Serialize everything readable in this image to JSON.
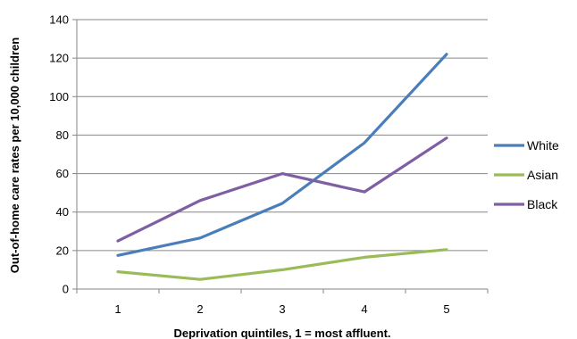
{
  "chart_data": {
    "type": "line",
    "title": "",
    "xlabel": "Deprivation quintiles, 1 = most affluent.",
    "ylabel": "Out-of-home care rates per 10,000 children",
    "categories": [
      "1",
      "2",
      "3",
      "4",
      "5"
    ],
    "ylim": [
      0,
      140
    ],
    "yticks": [
      "0",
      "20",
      "40",
      "60",
      "80",
      "100",
      "120",
      "140"
    ],
    "grid": true,
    "legend_position": "right",
    "series": [
      {
        "name": "White",
        "color": "#4a7ebb",
        "values": [
          17.5,
          26.5,
          44.5,
          76,
          122
        ]
      },
      {
        "name": "Asian",
        "color": "#9bbb59",
        "values": [
          9,
          5,
          10,
          16.5,
          20.5
        ]
      },
      {
        "name": "Black",
        "color": "#7f5fa3",
        "values": [
          25,
          46,
          60,
          50.5,
          78.5
        ]
      }
    ]
  }
}
